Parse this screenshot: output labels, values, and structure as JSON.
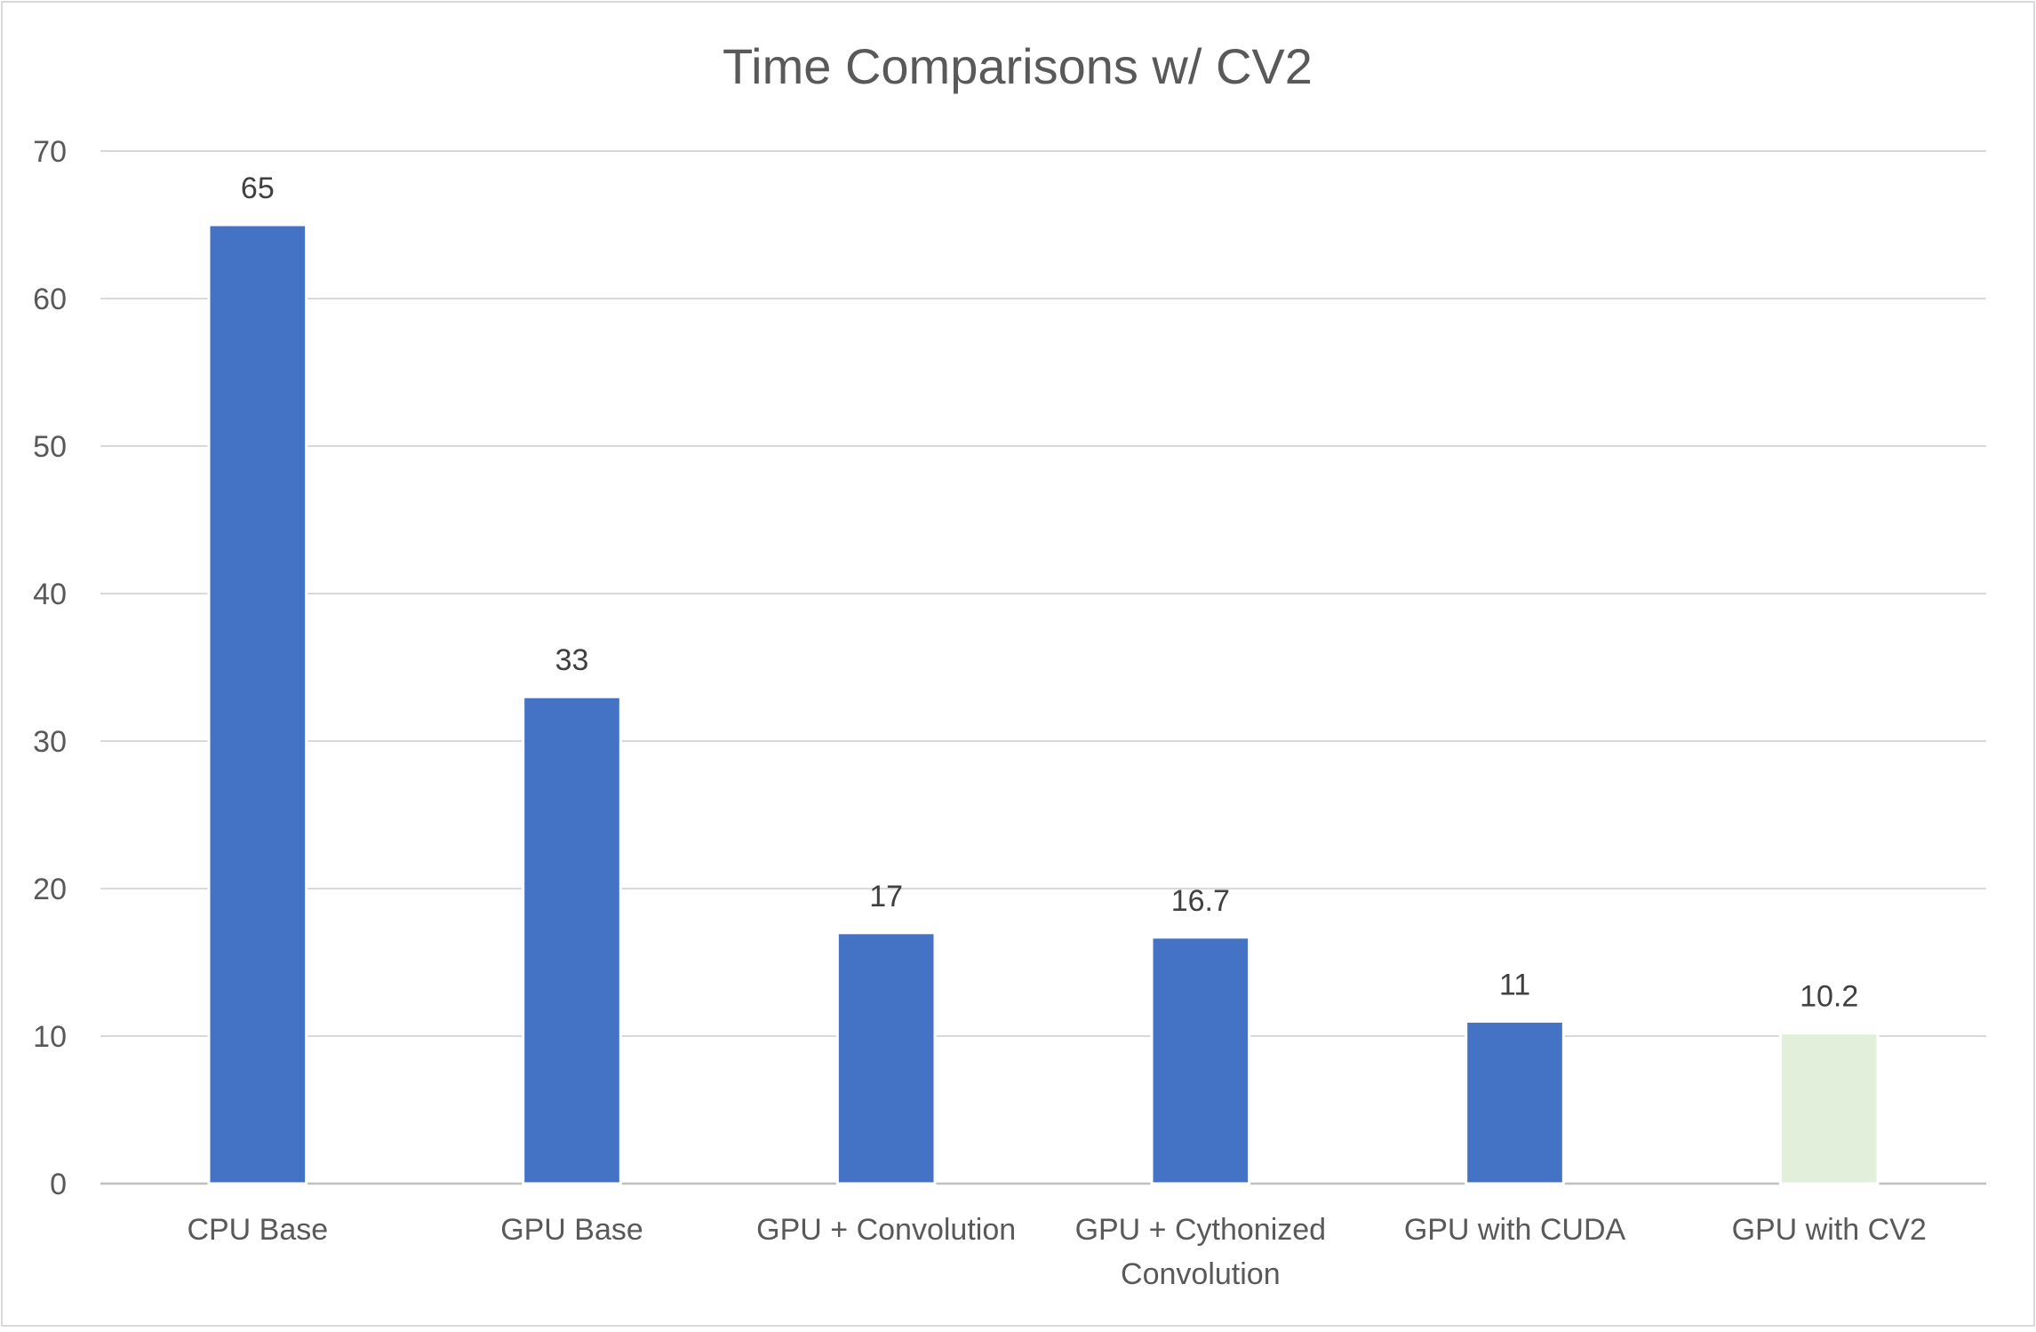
{
  "chart_data": {
    "type": "bar",
    "title": "Time Comparisons w/ CV2",
    "categories": [
      [
        "CPU Base"
      ],
      [
        "GPU Base"
      ],
      [
        "GPU + Convolution"
      ],
      [
        "GPU + Cythonized",
        "Convolution"
      ],
      [
        "GPU with CUDA"
      ],
      [
        "GPU with CV2"
      ]
    ],
    "values": [
      65,
      33,
      17,
      16.7,
      11,
      10.2
    ],
    "data_labels": [
      "65",
      "33",
      "17",
      "16.7",
      "11",
      "10.2"
    ],
    "bar_colors": [
      "#4472C4",
      "#4472C4",
      "#4472C4",
      "#4472C4",
      "#4472C4",
      "#E2EFDA"
    ],
    "ylim": [
      0,
      70
    ],
    "yticks": [
      0,
      10,
      20,
      30,
      40,
      50,
      60,
      70
    ],
    "grid": true,
    "legend": "none",
    "xlabel": "",
    "ylabel": ""
  },
  "colors": {
    "title_text": "#595959",
    "tick_text": "#595959",
    "label_text": "#404040",
    "grid": "#D9D9D9",
    "axis": "#BFBFBF",
    "frame": "#D9D9D9"
  }
}
